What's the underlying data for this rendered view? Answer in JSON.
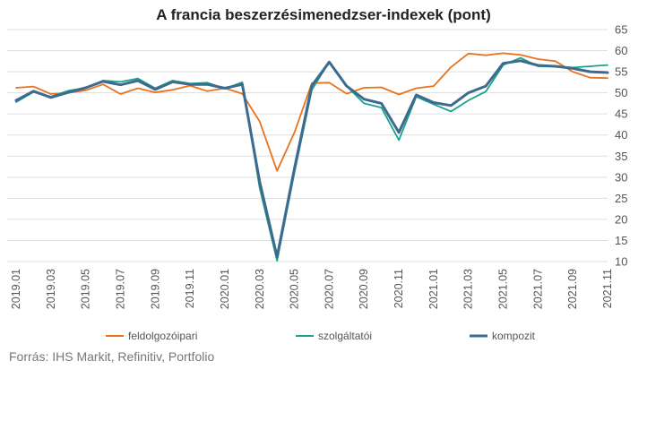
{
  "chart_data": {
    "type": "line",
    "title": "A francia beszerzésimenedzser-indexek (pont)",
    "xlabel": "",
    "ylabel": "",
    "ylim": [
      10,
      65
    ],
    "yticks": [
      10,
      15,
      20,
      25,
      30,
      35,
      40,
      45,
      50,
      55,
      60,
      65
    ],
    "y_axis_position": "right",
    "grid": true,
    "legend_position": "bottom",
    "x": [
      "2019.01",
      "2019.02",
      "2019.03",
      "2019.04",
      "2019.05",
      "2019.06",
      "2019.07",
      "2019.08",
      "2019.09",
      "2019.10",
      "2019.11",
      "2019.12",
      "2020.01",
      "2020.02",
      "2020.03",
      "2020.04",
      "2020.05",
      "2020.06",
      "2020.07",
      "2020.08",
      "2020.09",
      "2020.10",
      "2020.11",
      "2020.12",
      "2021.01",
      "2021.02",
      "2021.03",
      "2021.04",
      "2021.05",
      "2021.06",
      "2021.07",
      "2021.08",
      "2021.09",
      "2021.10",
      "2021.11"
    ],
    "xtick_labels": [
      "2019.01",
      "2019.03",
      "2019.05",
      "2019.07",
      "2019.09",
      "2019.11",
      "2020.01",
      "2020.03",
      "2020.05",
      "2020.07",
      "2020.09",
      "2020.11",
      "2021.01",
      "2021.03",
      "2021.05",
      "2021.07",
      "2021.09",
      "2021.11"
    ],
    "series": [
      {
        "name": "feldolgozóipari",
        "color": "#e8731f",
        "values": [
          51.2,
          51.5,
          49.7,
          50.0,
          50.6,
          52.0,
          49.7,
          51.1,
          50.1,
          50.7,
          51.7,
          50.4,
          51.1,
          49.8,
          43.2,
          31.5,
          40.6,
          52.3,
          52.4,
          49.8,
          51.2,
          51.3,
          49.6,
          51.1,
          51.6,
          56.1,
          59.3,
          58.9,
          59.4,
          59.0,
          58.0,
          57.5,
          55.0,
          53.6,
          53.5
        ]
      },
      {
        "name": "szolgáltatói",
        "color": "#1aa38a",
        "values": [
          47.8,
          50.2,
          49.1,
          50.5,
          51.2,
          52.9,
          52.6,
          53.4,
          51.1,
          52.9,
          52.2,
          52.4,
          51.0,
          52.5,
          27.4,
          10.2,
          31.1,
          50.7,
          57.3,
          51.6,
          47.5,
          46.5,
          38.8,
          49.1,
          47.3,
          45.6,
          48.2,
          50.3,
          56.6,
          58.3,
          56.3,
          56.2,
          56.0,
          56.3,
          56.6
        ]
      },
      {
        "name": "kompozit",
        "color": "#3d6a8f",
        "values": [
          48.2,
          50.4,
          48.9,
          50.1,
          51.2,
          52.7,
          51.9,
          52.9,
          50.8,
          52.6,
          52.0,
          52.0,
          51.1,
          52.0,
          28.9,
          11.1,
          32.1,
          51.7,
          57.3,
          51.6,
          48.5,
          47.5,
          40.6,
          49.5,
          47.7,
          47.0,
          50.0,
          51.6,
          57.0,
          57.6,
          56.5,
          56.3,
          55.8,
          55.0,
          54.8
        ]
      }
    ]
  },
  "source": "Forrás: IHS Markit, Refinitiv, Portfolio"
}
